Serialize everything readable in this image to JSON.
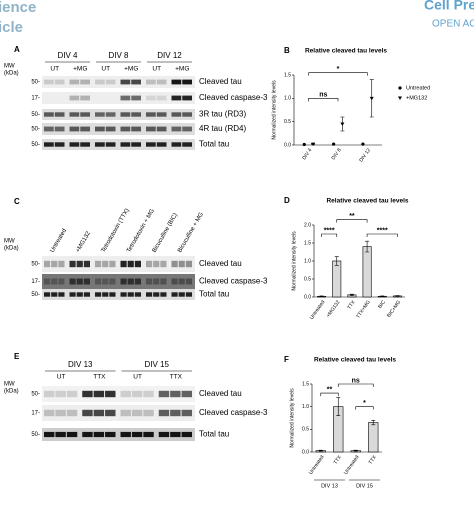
{
  "header": {
    "left_lines": [
      "ience",
      "icle"
    ],
    "right_lines": [
      "Cell Pre",
      "OPEN ACC"
    ]
  },
  "panels": [
    {
      "label": "A",
      "mw": [
        "MW",
        "(kDa)"
      ],
      "groups": [
        "DIV 4",
        "DIV 8",
        "DIV 12"
      ],
      "lanes": [
        "UT",
        "+MG",
        "UT",
        "+MG",
        "UT",
        "+MG"
      ],
      "rows": [
        {
          "marker": "50-",
          "name": "Cleaved tau"
        },
        {
          "marker": "17-",
          "name": "Cleaved caspase-3"
        },
        {
          "marker": "50-",
          "name": "3R tau (RD3)"
        },
        {
          "marker": "50-",
          "name": "4R tau (RD4)"
        },
        {
          "marker": "50-",
          "name": "Total tau"
        }
      ]
    },
    {
      "label": "C",
      "mw": [
        "MW",
        "(kDa)"
      ],
      "lanes": [
        "Untreated",
        "+MG132",
        "Tetrodotoxin (TTX)",
        "Tetrodotoxin + MG",
        "Bicuculline (BIC)",
        "Bicuculline + MG"
      ],
      "rows": [
        {
          "marker": "50-",
          "name": "Cleaved tau"
        },
        {
          "marker": "17-",
          "name": "Cleaved caspase-3"
        },
        {
          "marker": "50-",
          "name": "Total tau"
        }
      ]
    },
    {
      "label": "E",
      "mw": [
        "MW",
        "(kDa)"
      ],
      "groups": [
        "DIV 13",
        "DIV 15"
      ],
      "lanes": [
        "UT",
        "TTX",
        "UT",
        "TTX"
      ],
      "rows": [
        {
          "marker": "50-",
          "name": "Cleaved tau"
        },
        {
          "marker": "17-",
          "name": "Cleaved caspase-3"
        },
        {
          "marker": "50-",
          "name": "Total tau"
        }
      ]
    }
  ],
  "chart_data": [
    {
      "type": "scatter",
      "label": "B",
      "title": "Relative cleaved tau levels",
      "y_label": "Normalized intensity levels",
      "categories": [
        "DIV 4",
        "DIV 8",
        "DIV 12"
      ],
      "series": [
        {
          "name": "Untreated",
          "color": "#000000",
          "marker": "circle",
          "values": [
            0.01,
            0.02,
            0.02
          ]
        },
        {
          "name": "+MG132",
          "color": "#000000",
          "marker": "triangle",
          "values": [
            0.02,
            0.45,
            1.0
          ],
          "errors": [
            0.01,
            0.15,
            0.4
          ]
        }
      ],
      "ylim": [
        0,
        1.5
      ],
      "yticks": [
        {
          "value": 0,
          "label": "0.0"
        },
        {
          "value": 0.5,
          "label": "0.5"
        },
        {
          "value": 1,
          "label": "1.0"
        },
        {
          "value": 1.5,
          "label": "1.5"
        }
      ],
      "annotations": [
        "ns",
        "*"
      ],
      "legend": "right"
    },
    {
      "type": "bar",
      "label": "D",
      "title": "Relative cleaved tau levels",
      "y_label": "Normalized intensity levels",
      "categories": [
        "Untreated",
        "+MG132",
        "TTX",
        "TTX+MG",
        "BIC",
        "BIC+MG"
      ],
      "values": [
        0.02,
        1.0,
        0.06,
        1.4,
        0.02,
        0.03
      ],
      "errors": [
        0.01,
        0.12,
        0.02,
        0.15,
        0.01,
        0.01
      ],
      "color": "#d9d9d9",
      "ylim": [
        0,
        2
      ],
      "yticks": [
        {
          "value": 0,
          "label": "0.0"
        },
        {
          "value": 0.5,
          "label": "0.5"
        },
        {
          "value": 1,
          "label": "1.0"
        },
        {
          "value": 1.5,
          "label": "1.5"
        },
        {
          "value": 2,
          "label": "2.0"
        }
      ],
      "annotations": [
        "**",
        "****",
        "****"
      ]
    },
    {
      "type": "bar",
      "label": "F",
      "title": "Relative cleaved tau levels",
      "y_label": "Normalized intensity levels",
      "categories": [
        "Untreated",
        "TTX",
        "Untreated",
        "TTX"
      ],
      "group_labels": [
        "DIV 13",
        "DIV 15"
      ],
      "values": [
        0.03,
        1.0,
        0.03,
        0.65
      ],
      "errors": [
        0.01,
        0.2,
        0.01,
        0.05
      ],
      "color": "#d9d9d9",
      "ylim": [
        0,
        1.5
      ],
      "yticks": [
        {
          "value": 0,
          "label": "0.0"
        },
        {
          "value": 0.5,
          "label": "0.5"
        },
        {
          "value": 1,
          "label": "1.0"
        },
        {
          "value": 1.5,
          "label": "1.5"
        }
      ],
      "annotations": [
        "**",
        "ns",
        "*"
      ]
    }
  ]
}
